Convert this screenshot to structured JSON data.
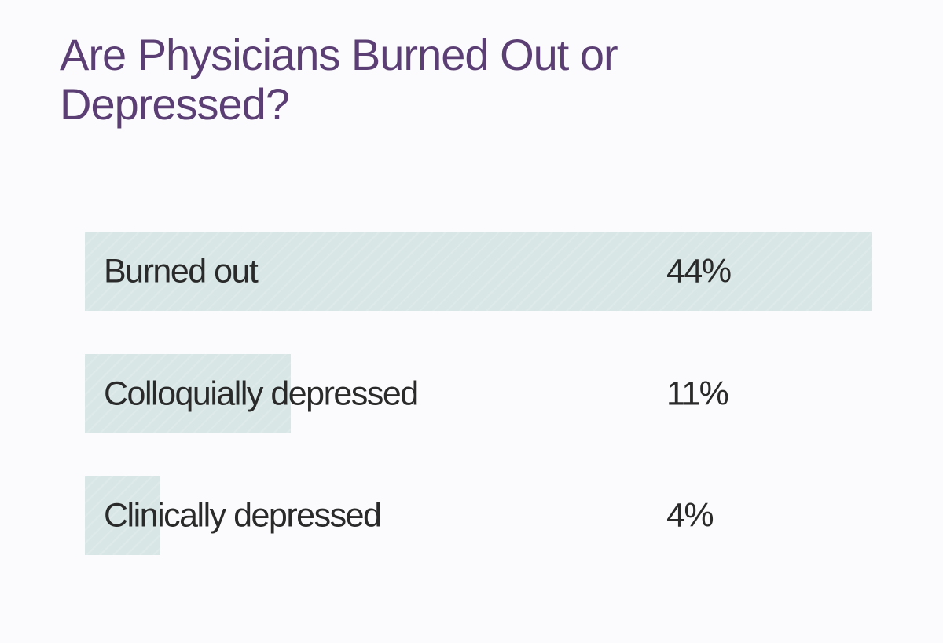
{
  "chart_data": {
    "type": "bar",
    "title": "Are Physicians Burned Out or Depressed?",
    "categories": [
      "Burned out",
      "Colloquially depressed",
      "Clinically depressed"
    ],
    "values": [
      44,
      11,
      4
    ],
    "value_labels": [
      "44%",
      "11%",
      "4%"
    ],
    "unit": "%",
    "orientation": "horizontal",
    "xlim": [
      0,
      44
    ],
    "grid": false,
    "colors": {
      "bar": "#d8e7e6",
      "title": "#5b3f74",
      "text": "#2a2a2a"
    }
  }
}
